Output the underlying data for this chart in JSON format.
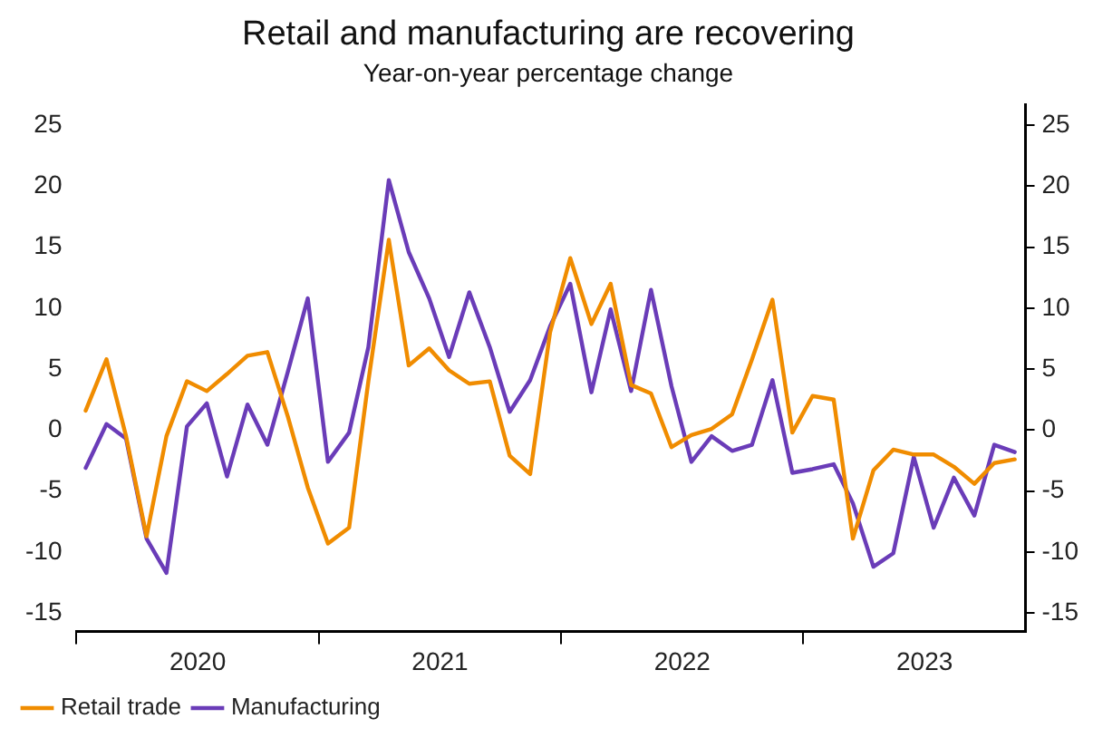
{
  "chart_data": {
    "type": "line",
    "title": "Retail and manufacturing are recovering",
    "subtitle": "Year-on-year percentage change",
    "x": [
      "2020-01-15",
      "2020-02-15",
      "2020-03-15",
      "2020-04-15",
      "2020-05-15",
      "2020-06-15",
      "2020-07-15",
      "2020-08-15",
      "2020-09-15",
      "2020-10-15",
      "2020-11-15",
      "2020-12-15",
      "2021-01-15",
      "2021-02-15",
      "2021-03-15",
      "2021-04-15",
      "2021-05-15",
      "2021-06-15",
      "2021-07-15",
      "2021-08-15",
      "2021-09-15",
      "2021-10-15",
      "2021-11-15",
      "2021-12-15",
      "2022-01-15",
      "2022-02-15",
      "2022-03-15",
      "2022-04-15",
      "2022-05-15",
      "2022-06-15",
      "2022-07-15",
      "2022-08-15",
      "2022-09-15",
      "2022-10-15",
      "2022-11-15",
      "2022-12-15",
      "2023-01-15",
      "2023-02-15",
      "2023-03-15",
      "2023-04-15",
      "2023-05-15",
      "2023-06-15",
      "2023-07-15",
      "2023-08-15",
      "2023-09-15",
      "2023-10-15",
      "2023-11-15"
    ],
    "series": [
      {
        "name": "Retail trade",
        "color": "#f08c00",
        "values": [
          1.6,
          5.8,
          -0.5,
          -8.7,
          -0.5,
          4.0,
          3.2,
          4.6,
          6.1,
          6.4,
          1.1,
          -4.7,
          -9.3,
          -8.0,
          4.0,
          15.6,
          5.3,
          6.7,
          4.9,
          3.8,
          4.0,
          -2.1,
          -3.6,
          8.0,
          14.1,
          8.7,
          12.0,
          3.7,
          3.0,
          -1.4,
          -0.4,
          0.1,
          1.3,
          5.8,
          10.7,
          -0.2,
          2.8,
          2.5,
          -8.9,
          -3.3,
          -1.6,
          -2.0,
          -2.0,
          -3.0,
          -4.4,
          -2.7,
          -2.4
        ]
      },
      {
        "name": "Manufacturing",
        "color": "#6a3cb8",
        "values": [
          -3.1,
          0.5,
          -0.7,
          -8.9,
          -11.7,
          0.3,
          2.2,
          -3.8,
          2.1,
          -1.2,
          4.8,
          10.8,
          -2.6,
          -0.2,
          6.8,
          20.5,
          14.6,
          10.8,
          6.0,
          11.3,
          6.8,
          1.5,
          4.1,
          8.5,
          12.0,
          3.1,
          9.9,
          3.2,
          11.5,
          3.6,
          -2.6,
          -0.5,
          -1.7,
          -1.2,
          4.1,
          -3.5,
          -3.2,
          -2.8,
          -6.0,
          -11.2,
          -10.1,
          -2.2,
          -8.0,
          -3.9,
          -7.0,
          -1.2,
          -1.8
        ]
      }
    ],
    "xlim": [
      "2020-01-01",
      "2023-12-01"
    ],
    "xticks": [
      {
        "value": "2020-01-01",
        "label": null
      },
      {
        "value": "2020-07-01",
        "label": "2020"
      },
      {
        "value": "2021-01-01",
        "label": null
      },
      {
        "value": "2021-07-01",
        "label": "2021"
      },
      {
        "value": "2022-01-01",
        "label": null
      },
      {
        "value": "2022-07-01",
        "label": "2022"
      },
      {
        "value": "2023-01-01",
        "label": null
      },
      {
        "value": "2023-07-01",
        "label": "2023"
      }
    ],
    "ylim": [
      -16.5,
      26.7
    ],
    "yticks": [
      -15,
      -10,
      -5,
      0,
      5,
      10,
      15,
      20,
      25
    ],
    "y2lim": [
      -16.5,
      26.7
    ],
    "y2ticks": [
      -15,
      -10,
      -5,
      0,
      5,
      10,
      15,
      20,
      25
    ],
    "grid": false,
    "legend": "bottom left",
    "marker": "none",
    "line_style": "solid"
  }
}
